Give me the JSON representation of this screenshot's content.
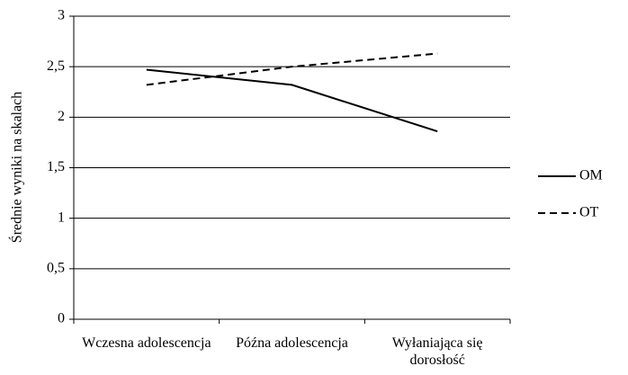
{
  "chart_data": {
    "type": "line",
    "y_label": "Średnie wyniki na skalach",
    "categories": [
      "Wczesna adolescencja",
      "Późna adolescencja",
      "Wyłaniająca się dorosłość"
    ],
    "series": [
      {
        "name": "OM",
        "color": "#000000",
        "linestyle": "solid",
        "values": [
          2.47,
          2.32,
          1.86
        ]
      },
      {
        "name": "OT",
        "color": "#000000",
        "linestyle": "dashed",
        "values": [
          2.32,
          2.5,
          2.63
        ]
      }
    ],
    "ylim": [
      0,
      3
    ],
    "yticks": [
      0,
      {
        "value": 0.5,
        "label": "0,5"
      },
      1,
      {
        "value": 1.5,
        "label": "1,5"
      },
      2,
      {
        "value": 2.5,
        "label": "2,5"
      },
      3
    ],
    "grid": true,
    "legend": "right"
  }
}
